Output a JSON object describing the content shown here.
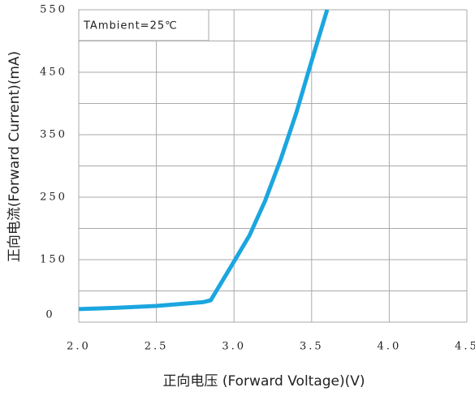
{
  "chart_data": {
    "type": "line",
    "annotation": "TAmbient=25℃",
    "x_label": "正向电压 (Forward Voltage)(V)",
    "y_label": "正向电流(Forward Current)(mA)",
    "x": [
      2.0,
      2.25,
      2.5,
      2.7,
      2.8,
      2.85,
      3.0,
      3.1,
      3.2,
      3.3,
      3.4,
      3.5,
      3.6
    ],
    "series": [
      {
        "color": "#1ba6df",
        "values": [
          71,
          73,
          76,
          80,
          82,
          85,
          147,
          189,
          244,
          310,
          384,
          468,
          550
        ]
      }
    ],
    "xlim": [
      2.0,
      4.5
    ],
    "ylim": [
      50,
      550
    ],
    "xticks": [
      {
        "value": 2,
        "label": "2.0"
      },
      2.5,
      {
        "value": 3,
        "label": "3.0"
      },
      3.5,
      {
        "value": 4,
        "label": "4.0"
      },
      4.5
    ],
    "yticks": [
      150,
      250,
      350,
      450,
      550
    ],
    "y_bottom_label": "0",
    "grid_yvalues": [
      50,
      100,
      150,
      200,
      250,
      300,
      350,
      400,
      450,
      500,
      550
    ],
    "grid": true
  }
}
